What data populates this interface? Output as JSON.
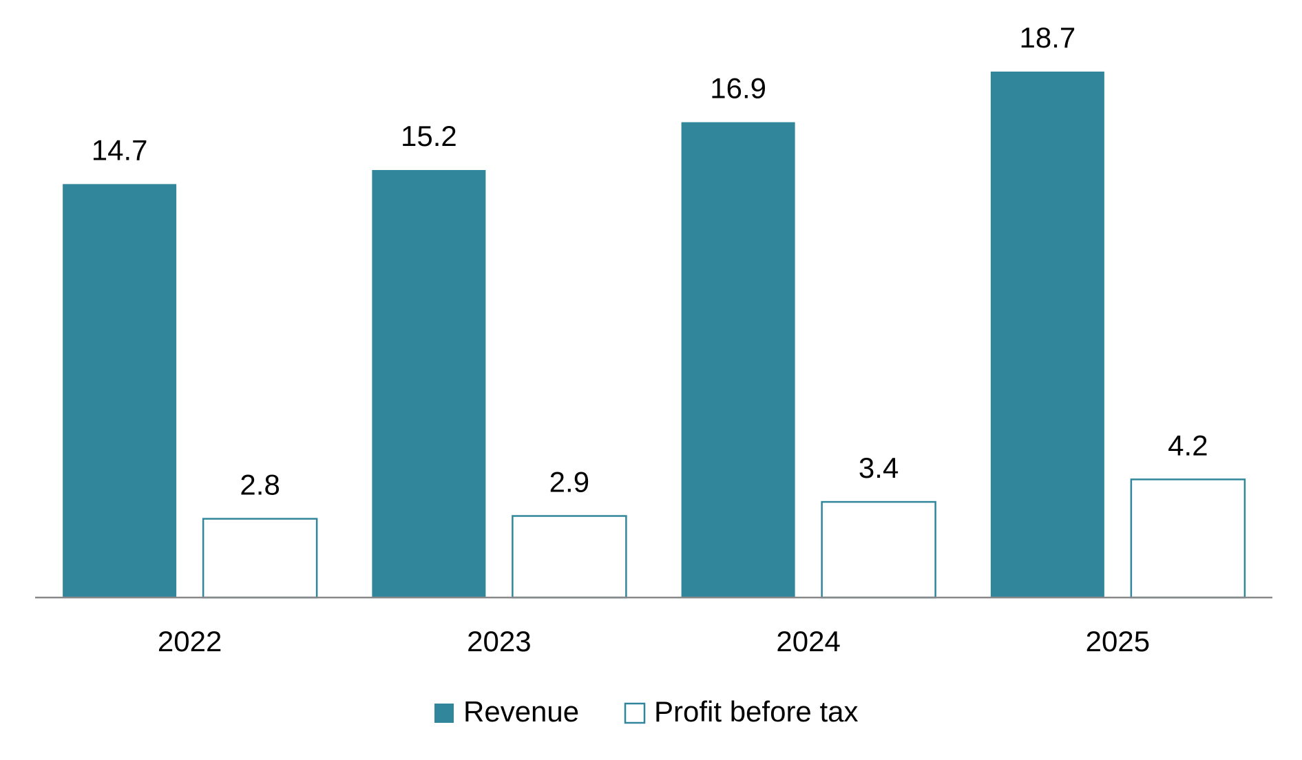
{
  "chart_data": {
    "type": "bar",
    "categories": [
      "2022",
      "2023",
      "2024",
      "2025"
    ],
    "series": [
      {
        "name": "Revenue",
        "color": "#31869b",
        "values": [
          14.7,
          15.2,
          16.9,
          18.7
        ]
      },
      {
        "name": "Profit before tax",
        "color": "#31869b",
        "values": [
          2.8,
          2.9,
          3.4,
          4.2
        ]
      }
    ],
    "ylim": [
      0,
      21
    ]
  }
}
